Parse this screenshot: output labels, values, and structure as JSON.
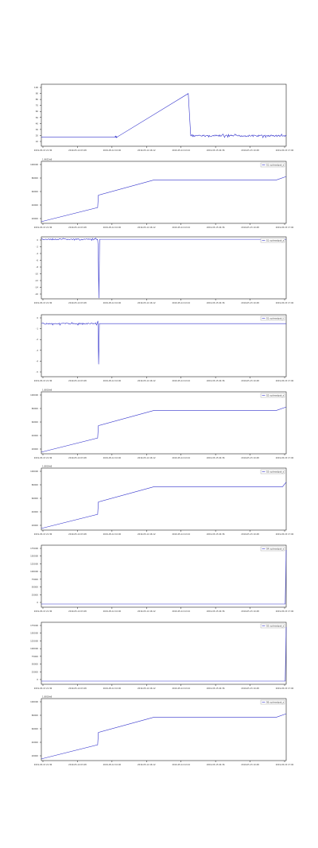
{
  "line_color": "#3333cc",
  "axis_color": "#222222",
  "chart_data": [
    {
      "type": "line",
      "legend": "",
      "legend_position": "top-right",
      "offset_label": "",
      "grid": false,
      "xtick_labels": [
        "2019-05-13 21:36",
        "2019-05-14 03:48",
        "2019-05-14 10:00",
        "2019-05-14 16:12",
        "2019-05-14 22:24",
        "2019-05-15 04:36",
        "2019-05-15 10:48",
        "2019-05-15 17:00"
      ],
      "ytick_labels": [
        "100",
        "90",
        "80",
        "70",
        "60",
        "50",
        "40",
        "30",
        "20",
        "10"
      ],
      "ylim": [
        5,
        105
      ],
      "series": [
        {
          "x": [
            0,
            30,
            31,
            60,
            61,
            100
          ],
          "y": [
            20,
            20,
            20,
            90,
            22,
            22
          ],
          "noise": [
            0,
            1,
            0,
            0,
            1,
            0
          ]
        }
      ]
    },
    {
      "type": "line",
      "legend": "S1 cycleoutput_s",
      "legend_position": "top-right",
      "offset_label": "1.9652e8",
      "grid": false,
      "xtick_labels": [
        "2019-05-13 21:36",
        "2019-05-14 03:48",
        "2019-05-14 10:00",
        "2019-05-14 16:12",
        "2019-05-14 22:24",
        "2019-05-15 04:36",
        "2019-05-15 10:48",
        "2019-05-15 17:00"
      ],
      "ytick_labels": [
        "100000",
        "80000",
        "60000",
        "40000",
        "20000"
      ],
      "ylim": [
        0,
        110000
      ],
      "series": [
        {
          "x": [
            0,
            23,
            23.3,
            46,
            96,
            100
          ],
          "y": [
            3000,
            28000,
            50000,
            77000,
            77000,
            83000
          ],
          "noise": [
            0,
            0,
            0,
            0,
            0,
            0
          ]
        }
      ]
    },
    {
      "type": "line",
      "legend": "S1 cycleoutput_z",
      "legend_position": "top-right",
      "offset_label": "",
      "grid": false,
      "xtick_labels": [
        "2019-05-13 21:36",
        "2019-05-14 03:48",
        "2019-05-14 10:00",
        "2019-05-14 16:12",
        "2019-05-14 22:24",
        "2019-05-15 04:36",
        "2019-05-15 10:48",
        "2019-05-15 17:00"
      ],
      "ytick_labels": [
        "0",
        "-2",
        "-4",
        "-6",
        "-8",
        "-10",
        "-12",
        "-14",
        "-16"
      ],
      "ylim": [
        -17,
        0.5
      ],
      "series": [
        {
          "x": [
            0,
            23,
            23.2,
            23.5,
            23.8,
            100
          ],
          "y": [
            -0.2,
            -0.2,
            -2,
            -16.8,
            -0.2,
            -0.2
          ],
          "noise": [
            1,
            0,
            0,
            0,
            0,
            0
          ]
        }
      ]
    },
    {
      "type": "line",
      "legend": "S1 cycleoutput_t",
      "legend_position": "top-right",
      "offset_label": "",
      "grid": false,
      "xtick_labels": [
        "2019-05-13 21:36",
        "2019-05-14 03:48",
        "2019-05-14 10:00",
        "2019-05-14 16:12",
        "2019-05-14 22:24",
        "2019-05-15 04:36",
        "2019-05-15 10:48",
        "2019-05-15 17:00"
      ],
      "ytick_labels": [
        "0",
        "-1",
        "-2",
        "-3",
        "-4",
        "-5"
      ],
      "ylim": [
        -6,
        1
      ],
      "series": [
        {
          "x": [
            0,
            22.8,
            23.1,
            23.4,
            23.7,
            100
          ],
          "y": [
            0,
            0,
            0.3,
            -4.6,
            0,
            0
          ],
          "noise": [
            1,
            0,
            0,
            0,
            0,
            0
          ]
        }
      ]
    },
    {
      "type": "line",
      "legend": "S2 cycleoutput_s",
      "legend_position": "top-right",
      "offset_label": "1.8818e8",
      "grid": false,
      "xtick_labels": [
        "2019-05-13 21:36",
        "2019-05-14 03:48",
        "2019-05-14 10:00",
        "2019-05-14 16:12",
        "2019-05-14 22:24",
        "2019-05-15 04:36",
        "2019-05-15 10:48",
        "2019-05-15 17:00"
      ],
      "ytick_labels": [
        "100000",
        "80000",
        "60000",
        "40000",
        "20000"
      ],
      "ylim": [
        0,
        110000
      ],
      "series": [
        {
          "x": [
            0,
            23,
            23.3,
            46,
            96,
            100
          ],
          "y": [
            3000,
            28000,
            50000,
            77000,
            77000,
            83000
          ],
          "noise": [
            0,
            0,
            0,
            0,
            0,
            0
          ]
        }
      ]
    },
    {
      "type": "line",
      "legend": "S3 cycleoutput_s",
      "legend_position": "top-right",
      "offset_label": "1.8818e8",
      "grid": false,
      "xtick_labels": [
        "2019-05-13 21:36",
        "2019-05-14 03:48",
        "2019-05-14 10:00",
        "2019-05-14 16:12",
        "2019-05-14 22:24",
        "2019-05-15 04:36",
        "2019-05-15 10:48",
        "2019-05-15 17:00"
      ],
      "ytick_labels": [
        "100000",
        "80000",
        "60000",
        "40000",
        "20000"
      ],
      "ylim": [
        0,
        110000
      ],
      "series": [
        {
          "x": [
            0,
            23,
            23.3,
            46,
            98.5,
            100
          ],
          "y": [
            3000,
            28000,
            50000,
            77000,
            77000,
            85000
          ],
          "noise": [
            0,
            0,
            0,
            0,
            0,
            0
          ]
        }
      ]
    },
    {
      "type": "line",
      "legend": "S4 cycleoutput_s",
      "legend_position": "top-right",
      "offset_label": "",
      "grid": false,
      "xtick_labels": [
        "2019-05-13 21:36",
        "2019-05-14 03:48",
        "2019-05-14 10:00",
        "2019-05-14 16:12",
        "2019-05-14 22:24",
        "2019-05-15 04:36",
        "2019-05-15 10:48",
        "2019-05-15 17:00"
      ],
      "ytick_labels": [
        "175000",
        "150000",
        "125000",
        "100000",
        "75000",
        "50000",
        "25000",
        "0"
      ],
      "ylim": [
        -10000,
        185000
      ],
      "series": [
        {
          "x": [
            0,
            99.6,
            100
          ],
          "y": [
            0,
            0,
            170000
          ],
          "noise": [
            0,
            0,
            0
          ]
        }
      ]
    },
    {
      "type": "line",
      "legend": "S5 cycleoutput_s",
      "legend_position": "top-right",
      "offset_label": "",
      "grid": false,
      "xtick_labels": [
        "2019-05-13 21:36",
        "2019-05-14 03:48",
        "2019-05-14 10:00",
        "2019-05-14 16:12",
        "2019-05-14 22:24",
        "2019-05-15 04:36",
        "2019-05-15 10:48",
        "2019-05-15 17:00"
      ],
      "ytick_labels": [
        "175000",
        "150000",
        "125000",
        "100000",
        "75000",
        "50000",
        "25000",
        "0"
      ],
      "ylim": [
        -10000,
        185000
      ],
      "series": [
        {
          "x": [
            0,
            99.6,
            100
          ],
          "y": [
            0,
            0,
            170000
          ],
          "noise": [
            0,
            0,
            0
          ]
        }
      ]
    },
    {
      "type": "line",
      "legend": "S6 cycleoutput_s",
      "legend_position": "top-right",
      "offset_label": "1.8818e8",
      "grid": false,
      "xtick_labels": [
        "2019-05-13 21:36",
        "2019-05-14 03:48",
        "2019-05-14 10:00",
        "2019-05-14 16:12",
        "2019-05-14 22:24",
        "2019-05-15 04:36",
        "2019-05-15 10:48",
        "2019-05-15 17:00"
      ],
      "ytick_labels": [
        "100000",
        "80000",
        "60000",
        "40000",
        "20000"
      ],
      "ylim": [
        0,
        110000
      ],
      "series": [
        {
          "x": [
            0,
            23,
            23.3,
            46,
            96,
            100
          ],
          "y": [
            3000,
            28000,
            50000,
            77000,
            77000,
            83000
          ],
          "noise": [
            0,
            0,
            0,
            0,
            0,
            0
          ]
        }
      ]
    }
  ]
}
